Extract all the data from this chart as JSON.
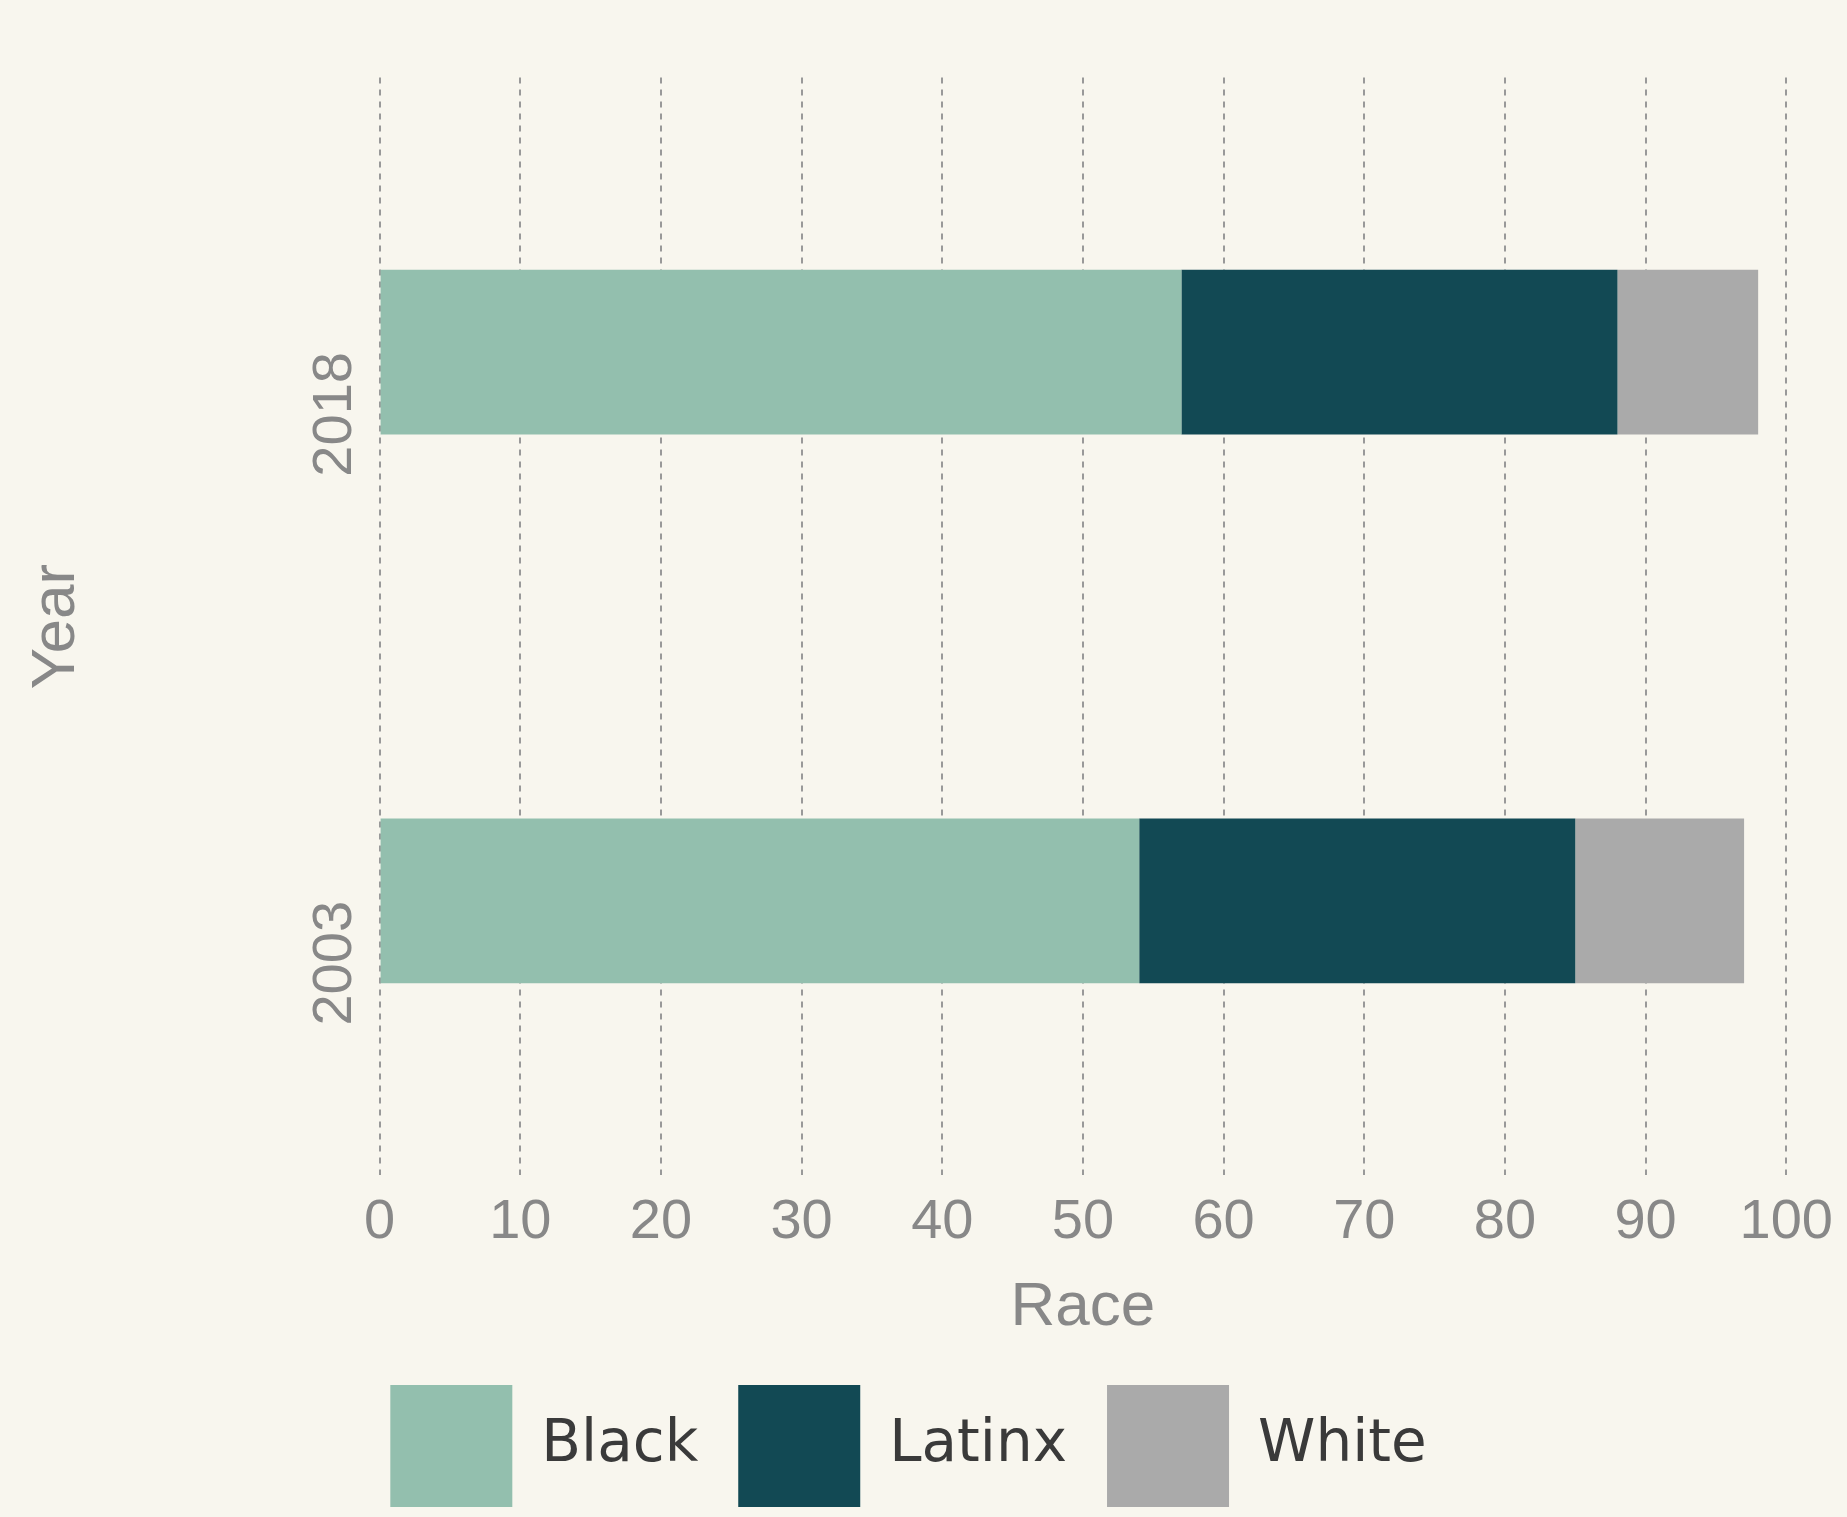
{
  "chart_data": {
    "type": "bar",
    "orientation": "horizontal",
    "stacked": true,
    "xlabel": "Race",
    "ylabel": "Year",
    "categories": [
      "2018",
      "2003"
    ],
    "series": [
      {
        "name": "Black",
        "color": "#93bfae",
        "values": [
          57,
          54
        ]
      },
      {
        "name": "Latinx",
        "color": "#124954",
        "values": [
          31,
          31
        ]
      },
      {
        "name": "White",
        "color": "#aaaaaa",
        "values": [
          10,
          12
        ]
      }
    ],
    "xlim": [
      0,
      100
    ],
    "xticks": [
      0,
      10,
      20,
      30,
      40,
      50,
      60,
      70,
      80,
      90,
      100
    ],
    "grid": "x",
    "legend": "bottom"
  }
}
